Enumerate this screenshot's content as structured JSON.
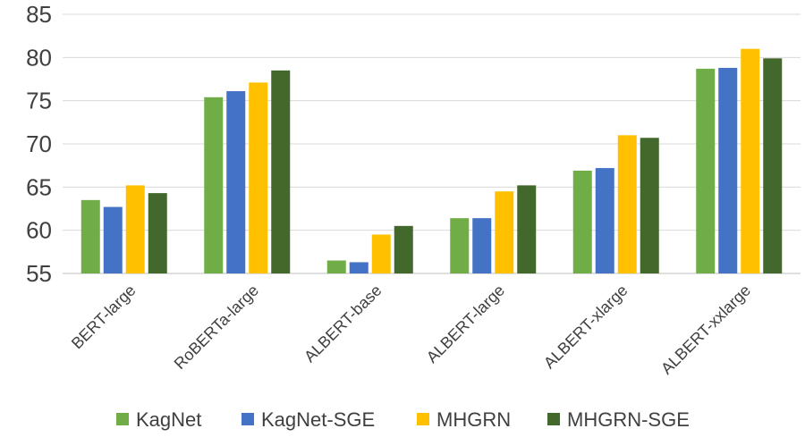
{
  "chart_data": {
    "type": "bar",
    "title": "",
    "xlabel": "",
    "ylabel": "",
    "ylim": [
      55,
      85
    ],
    "yticks": [
      55,
      60,
      65,
      70,
      75,
      80,
      85
    ],
    "grid": true,
    "legend_position": "bottom",
    "categories": [
      "BERT-large",
      "RoBERTa-large",
      "ALBERT-base",
      "ALBERT-large",
      "ALBERT-xlarge",
      "ALBERT-xxlarge"
    ],
    "series": [
      {
        "name": "KagNet",
        "color": "#70ad47",
        "values": [
          63.5,
          75.4,
          56.5,
          61.4,
          66.9,
          78.7
        ]
      },
      {
        "name": "KagNet-SGE",
        "color": "#4472c4",
        "values": [
          62.7,
          76.1,
          56.3,
          61.4,
          67.2,
          78.8
        ]
      },
      {
        "name": "MHGRN",
        "color": "#ffc000",
        "values": [
          65.2,
          77.1,
          59.5,
          64.5,
          71.0,
          81.0
        ]
      },
      {
        "name": "MHGRN-SGE",
        "color": "#43682b",
        "values": [
          64.3,
          78.5,
          60.5,
          65.2,
          70.7,
          79.9
        ]
      }
    ]
  }
}
